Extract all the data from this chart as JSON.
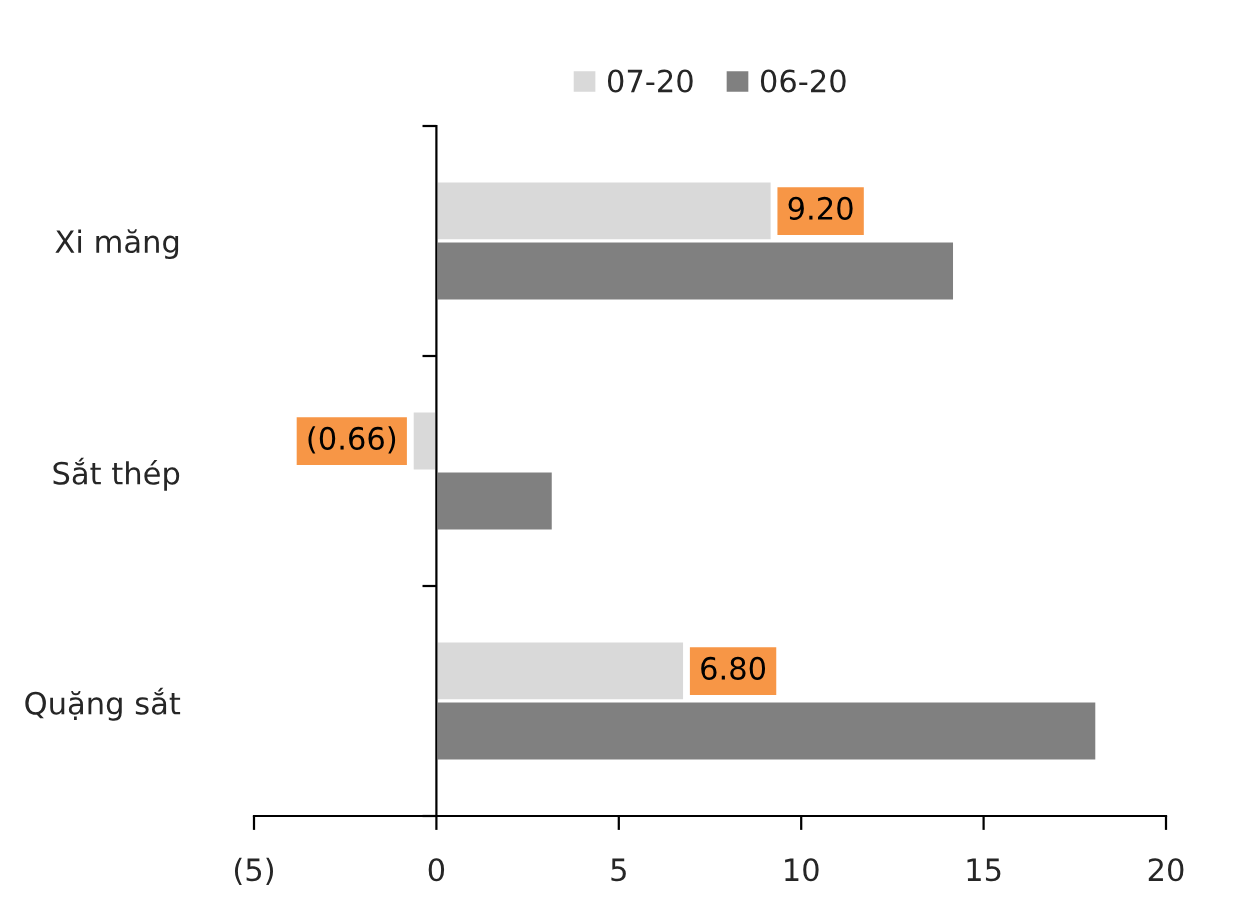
{
  "chart_data": {
    "type": "bar",
    "orientation": "horizontal",
    "categories": [
      "Xi măng",
      "Sắt thép",
      "Quặng sắt"
    ],
    "series": [
      {
        "name": "07-20",
        "color": "#d9d9d9",
        "values": [
          9.2,
          -0.66,
          6.8
        ],
        "value_labels": [
          "9.20",
          "(0.66)",
          "6.80"
        ]
      },
      {
        "name": "06-20",
        "color": "#808080",
        "values": [
          14.2,
          3.2,
          18.1
        ]
      }
    ],
    "xlim": [
      -5,
      20
    ],
    "xticks": [
      {
        "value": -5,
        "label": "(5)"
      },
      0,
      5,
      10,
      15,
      20
    ],
    "legend": "top"
  }
}
